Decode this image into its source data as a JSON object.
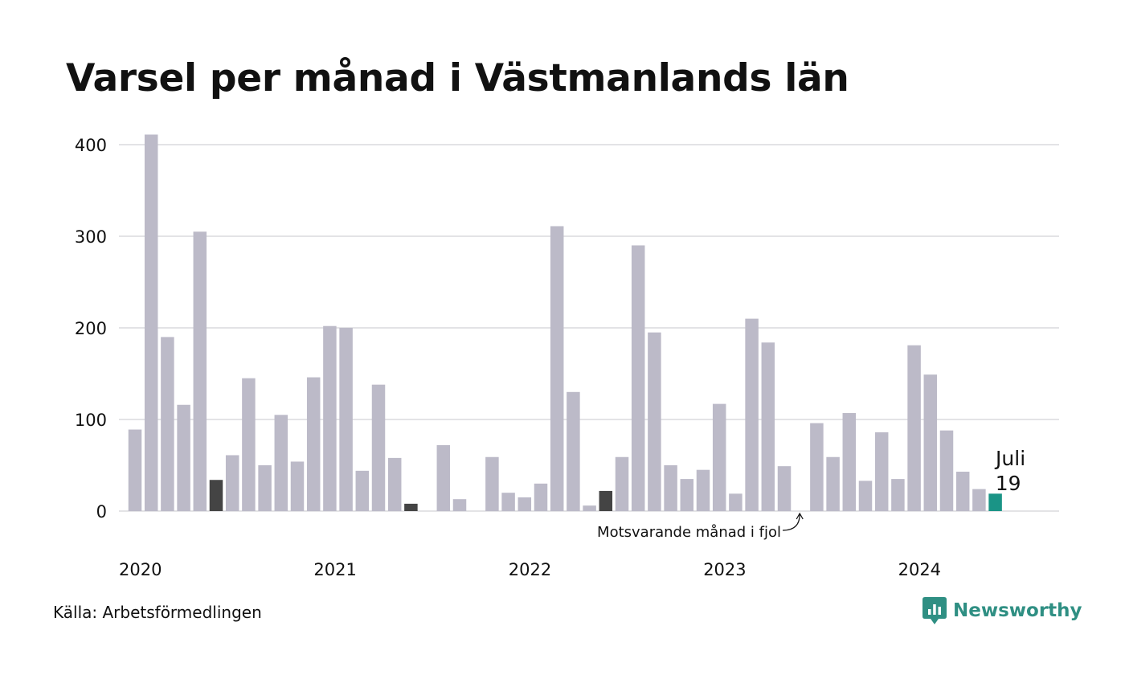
{
  "title": "Varsel per månad i Västmanlands län",
  "source": "Källa: Arbetsförmedlingen",
  "brand": {
    "name": "Newsworthy",
    "icon": "newsworthy-logo-icon",
    "color": "#2f8f83"
  },
  "annotation": {
    "text": "Motsvarande månad i fjol"
  },
  "colors": {
    "bar": "#bcbac8",
    "highlight": "#444444",
    "current": "#1a9486",
    "grid": "#e3e3e6"
  },
  "chart_data": {
    "type": "bar",
    "title": "Varsel per månad i Västmanlands län",
    "xlabel": "",
    "ylabel": "",
    "ylim": [
      0,
      410
    ],
    "yticks": [
      0,
      100,
      200,
      300,
      400
    ],
    "grid": true,
    "year_labels": [
      "2020",
      "2021",
      "2022",
      "2023",
      "2024"
    ],
    "start": "2020-01",
    "values": [
      89,
      411,
      190,
      116,
      305,
      34,
      61,
      145,
      50,
      105,
      54,
      146,
      202,
      200,
      44,
      138,
      58,
      8,
      0,
      72,
      13,
      0,
      59,
      20,
      15,
      30,
      311,
      130,
      6,
      22,
      59,
      290,
      195,
      50,
      35,
      45,
      117,
      19,
      210,
      184,
      49,
      0,
      96,
      59,
      107,
      33,
      86,
      35,
      181,
      149,
      88,
      43,
      24,
      19
    ],
    "highlight_indices": [
      5,
      17,
      29,
      41
    ],
    "current_index": 53,
    "last_label": {
      "month": "Juli",
      "value": "19"
    }
  }
}
